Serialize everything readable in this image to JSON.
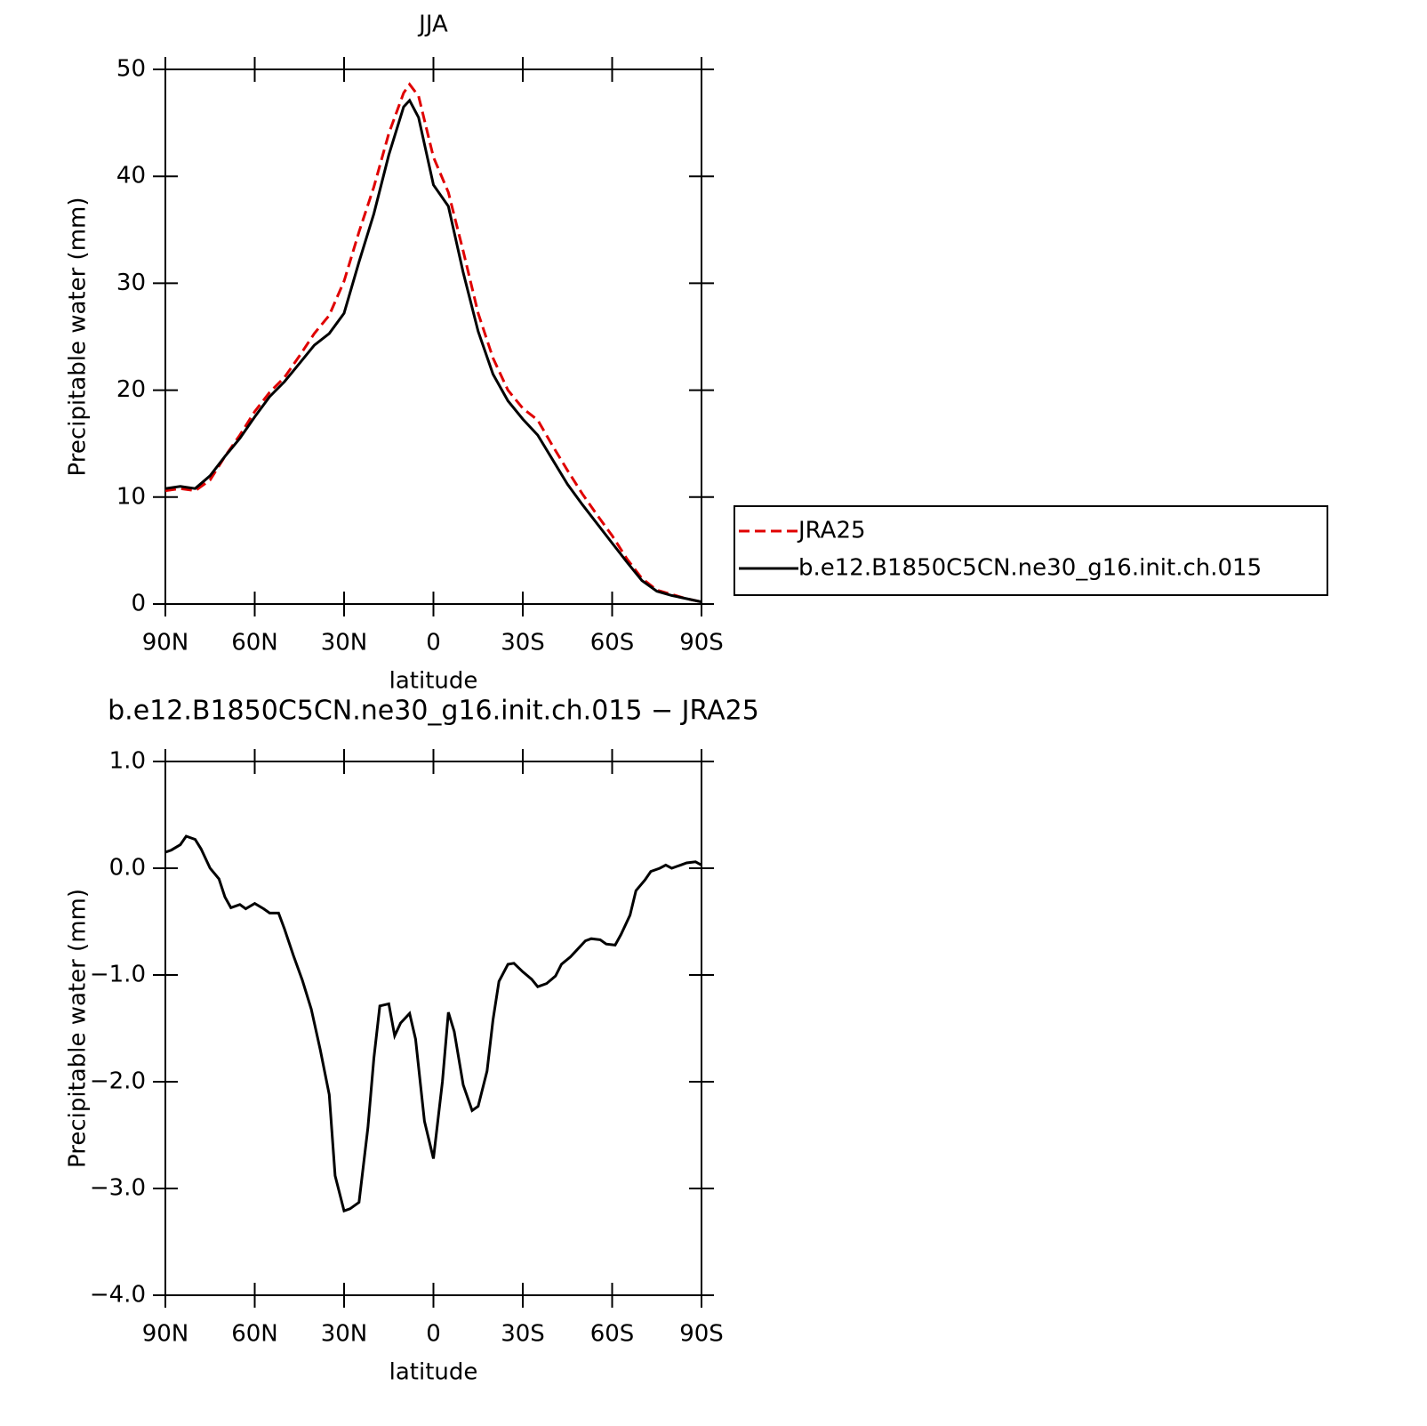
{
  "chart_data": [
    {
      "type": "line",
      "title": "JJA",
      "ylabel": "Precipitable water (mm)",
      "xlabel": "latitude",
      "x": [
        90,
        85,
        80,
        75,
        70,
        65,
        60,
        55,
        50,
        45,
        40,
        35,
        30,
        25,
        20,
        15,
        10,
        8,
        5,
        0,
        -5,
        -10,
        -15,
        -20,
        -25,
        -30,
        -35,
        -40,
        -45,
        -50,
        -55,
        -60,
        -65,
        -70,
        -75,
        -80,
        -85,
        -90
      ],
      "series": [
        {
          "name": "JRA25",
          "color": "#e00000",
          "style": "dashed",
          "values": [
            10.6,
            10.8,
            10.6,
            11.6,
            13.8,
            15.8,
            18,
            19.8,
            21.2,
            23.2,
            25.3,
            27,
            30.2,
            34.8,
            39,
            44,
            47.8,
            48.6,
            47.5,
            41.8,
            38.5,
            33,
            27.2,
            23,
            20,
            18.3,
            17.2,
            14.8,
            12.5,
            10.3,
            8.3,
            6.4,
            4.2,
            2.4,
            1.3,
            0.9,
            0.5,
            0.2
          ]
        },
        {
          "name": "b.e12.B1850C5CN.ne30_g16.init.ch.015",
          "color": "#000000",
          "style": "solid",
          "values": [
            10.8,
            11.0,
            10.8,
            12.0,
            13.8,
            15.5,
            17.5,
            19.4,
            20.8,
            22.5,
            24.2,
            25.3,
            27.2,
            32,
            36.5,
            42,
            46.5,
            47.1,
            45.5,
            39.2,
            37.2,
            31,
            25.5,
            21.5,
            19,
            17.3,
            15.8,
            13.5,
            11.2,
            9.3,
            7.5,
            5.7,
            3.9,
            2.2,
            1.2,
            0.8,
            0.5,
            0.2
          ]
        }
      ],
      "xlim": [
        90,
        -90
      ],
      "xticks": [
        {
          "value": 90,
          "label": "90N"
        },
        {
          "value": 60,
          "label": "60N"
        },
        {
          "value": 30,
          "label": "30N"
        },
        0,
        {
          "value": -30,
          "label": "30S"
        },
        {
          "value": -60,
          "label": "60S"
        },
        {
          "value": -90,
          "label": "90S"
        }
      ],
      "ylim": [
        0,
        50
      ],
      "yticks": [
        0,
        10,
        20,
        30,
        40,
        50
      ]
    },
    {
      "type": "line",
      "title": "b.e12.B1850C5CN.ne30_g16.init.ch.015 − JRA25",
      "ylabel": "Precipitable water (mm)",
      "xlabel": "latitude",
      "x": [
        90,
        88,
        85,
        83,
        80,
        78,
        75,
        72,
        70,
        68,
        65,
        63,
        60,
        57,
        55,
        52,
        50,
        47,
        44,
        41,
        38,
        35,
        33,
        30,
        28,
        25,
        22,
        20,
        18,
        15,
        13,
        11,
        8,
        6,
        3,
        0,
        -3,
        -5,
        -7,
        -10,
        -13,
        -15,
        -18,
        -20,
        -22,
        -25,
        -27,
        -30,
        -33,
        -35,
        -38,
        -41,
        -43,
        -46,
        -49,
        -51,
        -53,
        -56,
        -58,
        -61,
        -63,
        -66,
        -68,
        -71,
        -73,
        -76,
        -78,
        -80,
        -83,
        -85,
        -88,
        -90
      ],
      "values": [
        0.15,
        0.17,
        0.22,
        0.3,
        0.27,
        0.18,
        0.0,
        -0.1,
        -0.27,
        -0.37,
        -0.34,
        -0.38,
        -0.33,
        -0.38,
        -0.42,
        -0.42,
        -0.57,
        -0.82,
        -1.05,
        -1.32,
        -1.7,
        -2.12,
        -2.88,
        -3.21,
        -3.19,
        -3.13,
        -2.43,
        -1.78,
        -1.29,
        -1.27,
        -1.57,
        -1.45,
        -1.36,
        -1.6,
        -2.37,
        -2.72,
        -2.0,
        -1.35,
        -1.53,
        -2.03,
        -2.27,
        -2.23,
        -1.9,
        -1.42,
        -1.06,
        -0.9,
        -0.89,
        -0.97,
        -1.04,
        -1.11,
        -1.08,
        -1.01,
        -0.9,
        -0.83,
        -0.74,
        -0.68,
        -0.66,
        -0.67,
        -0.71,
        -0.72,
        -0.62,
        -0.44,
        -0.21,
        -0.11,
        -0.03,
        0.0,
        0.03,
        0.0,
        0.03,
        0.05,
        0.06,
        0.03
      ],
      "color": "#000000",
      "xlim": [
        90,
        -90
      ],
      "xticks": [
        {
          "value": 90,
          "label": "90N"
        },
        {
          "value": 60,
          "label": "60N"
        },
        {
          "value": 30,
          "label": "30N"
        },
        0,
        {
          "value": -30,
          "label": "30S"
        },
        {
          "value": -60,
          "label": "60S"
        },
        {
          "value": -90,
          "label": "90S"
        }
      ],
      "ylim": [
        -4,
        1
      ],
      "yticks": [
        {
          "value": -4,
          "label": "−4.0"
        },
        {
          "value": -3,
          "label": "−3.0"
        },
        {
          "value": -2,
          "label": "−2.0"
        },
        {
          "value": -1,
          "label": "−1.0"
        },
        {
          "value": 0,
          "label": "0.0"
        },
        {
          "value": 1,
          "label": "1.0"
        }
      ]
    }
  ]
}
